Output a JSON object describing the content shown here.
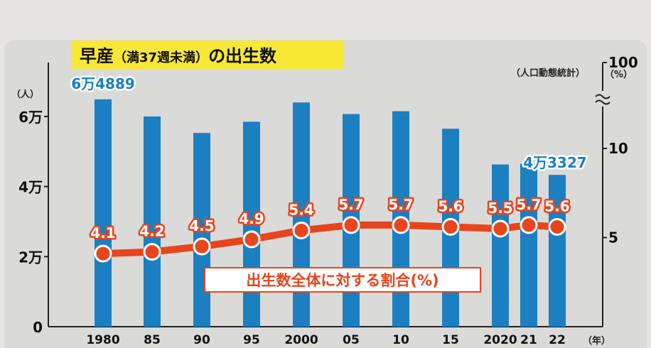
{
  "title": {
    "main1": "早産",
    "paren": "（満37週未満）",
    "main2": "の出生数"
  },
  "source": "（人口動態統計）",
  "chart_data": {
    "type": "bar",
    "categories": [
      "1980",
      "85",
      "90",
      "95",
      "2000",
      "05",
      "10",
      "15",
      "2020",
      "21",
      "22"
    ],
    "x_unit": "（年）",
    "series": [
      {
        "values": [
          64889,
          60000,
          55300,
          58500,
          64000,
          60700,
          61500,
          56500,
          46300,
          46500,
          43327
        ]
      },
      {
        "name": "出生数全体に対する割合(%)",
        "values": [
          4.1,
          4.2,
          4.5,
          4.9,
          5.4,
          5.7,
          5.7,
          5.6,
          5.5,
          5.7,
          5.6
        ]
      }
    ],
    "bar_color": "#1c7fc1",
    "line_color": "#e8451d",
    "left_axis": {
      "unit": "（人）",
      "ylim": [
        0,
        75000
      ],
      "ticks": [
        {
          "v": 0,
          "label": "0"
        },
        {
          "v": 20000,
          "label": "2万"
        },
        {
          "v": 40000,
          "label": "4万"
        },
        {
          "v": 60000,
          "label": "6万"
        }
      ]
    },
    "right_axis": {
      "unit": "（%）",
      "ylim": [
        0,
        100
      ],
      "axis_break": true,
      "ticks": [
        {
          "v": 5,
          "label": "5"
        },
        {
          "v": 10,
          "label": "10"
        },
        {
          "v": 100,
          "label": "100"
        }
      ]
    },
    "bar_labels": [
      {
        "index": 0,
        "text": "6万4889"
      },
      {
        "index": 10,
        "text": "4万3327"
      }
    ],
    "legend_text": "出生数全体に対する割合(%)"
  }
}
